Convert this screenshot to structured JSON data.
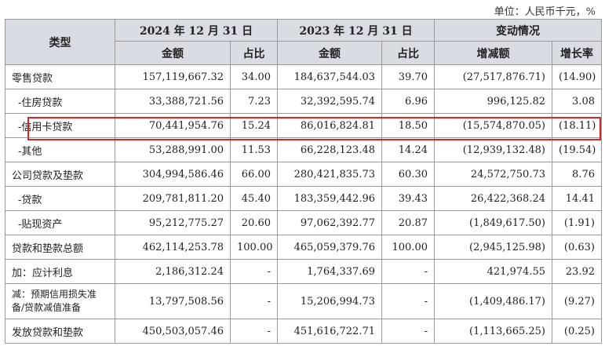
{
  "unit_label": "单位：人民币千元，%",
  "headers": {
    "type": "类型",
    "period_2024": "2024 年 12 月 31 日",
    "period_2023": "2023 年 12 月 31 日",
    "change": "变动情况",
    "amount": "金额",
    "share": "占比",
    "delta": "增减额",
    "growth": "增长率"
  },
  "rows": [
    {
      "label": "零售贷款",
      "a24": "157,119,667.32",
      "p24": "34.00",
      "a23": "184,637,544.03",
      "p23": "39.70",
      "chg": "(27,517,876.71)",
      "gr": "(14.90)"
    },
    {
      "label": "-住房贷款",
      "a24": "33,388,721.56",
      "p24": "7.23",
      "a23": "32,392,595.74",
      "p23": "6.96",
      "chg": "996,125.82",
      "gr": "3.08"
    },
    {
      "label": "-信用卡贷款",
      "a24": "70,441,954.76",
      "p24": "15.24",
      "a23": "86,016,824.81",
      "p23": "18.50",
      "chg": "(15,574,870.05)",
      "gr": "(18.11)"
    },
    {
      "label": "-其他",
      "a24": "53,288,991.00",
      "p24": "11.53",
      "a23": "66,228,123.48",
      "p23": "14.24",
      "chg": "(12,939,132.48)",
      "gr": "(19.54)"
    },
    {
      "label": "公司贷款及垫款",
      "a24": "304,994,586.46",
      "p24": "66.00",
      "a23": "280,421,835.73",
      "p23": "60.30",
      "chg": "24,572,750.73",
      "gr": "8.76"
    },
    {
      "label": "-贷款",
      "a24": "209,781,811.20",
      "p24": "45.40",
      "a23": "183,359,442.96",
      "p23": "39.43",
      "chg": "26,422,368.24",
      "gr": "14.41"
    },
    {
      "label": "-贴现资产",
      "a24": "95,212,775.27",
      "p24": "20.60",
      "a23": "97,062,392.77",
      "p23": "20.87",
      "chg": "(1,849,617.50)",
      "gr": "(1.91)"
    },
    {
      "label": "贷款和垫款总额",
      "a24": "462,114,253.78",
      "p24": "100.00",
      "a23": "465,059,379.76",
      "p23": "100.00",
      "chg": "(2,945,125.98)",
      "gr": "(0.63)"
    },
    {
      "label": "加：应计利息",
      "a24": "2,186,312.24",
      "p24": "-",
      "a23": "1,764,337.69",
      "p23": "-",
      "chg": "421,974.55",
      "gr": "23.92"
    },
    {
      "label": "减：预期信用损失准备/贷款减值准备",
      "a24": "13,797,508.56",
      "p24": "-",
      "a23": "15,206,994.73",
      "p23": "-",
      "chg": "(1,409,486.17)",
      "gr": "(9.27)"
    },
    {
      "label": "发放贷款和垫款",
      "a24": "450,503,057.46",
      "p24": "-",
      "a23": "451,616,722.71",
      "p23": "-",
      "chg": "(1,113,665.25)",
      "gr": "(0.25)"
    }
  ]
}
